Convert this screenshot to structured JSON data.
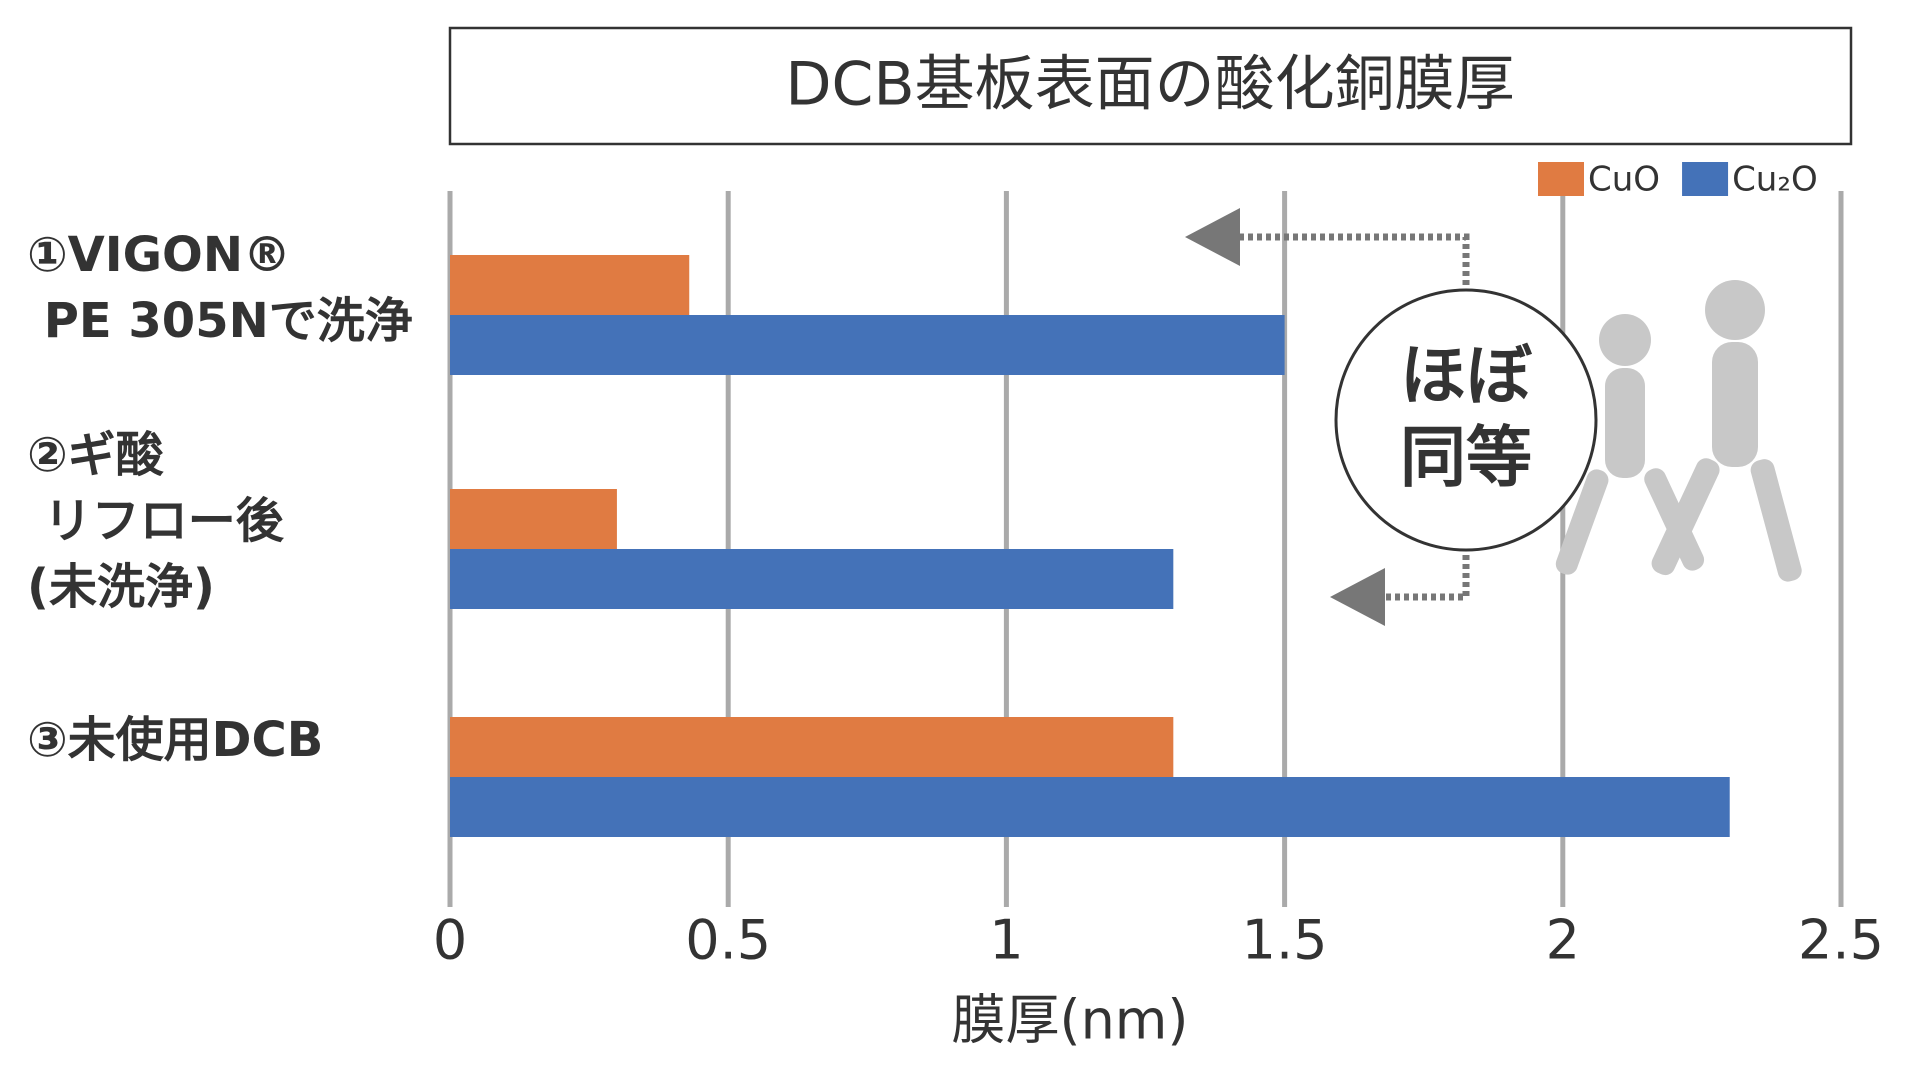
{
  "chart_data": {
    "type": "bar",
    "orientation": "horizontal",
    "title": "DCB基板表面の酸化銅膜厚",
    "x_label": "膜厚(nm)",
    "categories": [
      "①VIGON®\n PE 305Nで洗浄",
      "②ギ酸\n リフロー後\n(未洗浄)",
      "③未使用DCB"
    ],
    "series": [
      {
        "name": "CuO",
        "color": "#e07b42",
        "values": [
          0.43,
          0.3,
          1.3
        ]
      },
      {
        "name": "Cu₂O",
        "color": "#4472b8",
        "values": [
          1.5,
          1.3,
          2.3
        ]
      }
    ],
    "xlim": [
      0,
      2.5
    ],
    "xticks": [
      0,
      0.5,
      1,
      1.5,
      2,
      2.5
    ],
    "grid": true,
    "legend": "top-right",
    "annotation": "ほぼ\n同等"
  }
}
